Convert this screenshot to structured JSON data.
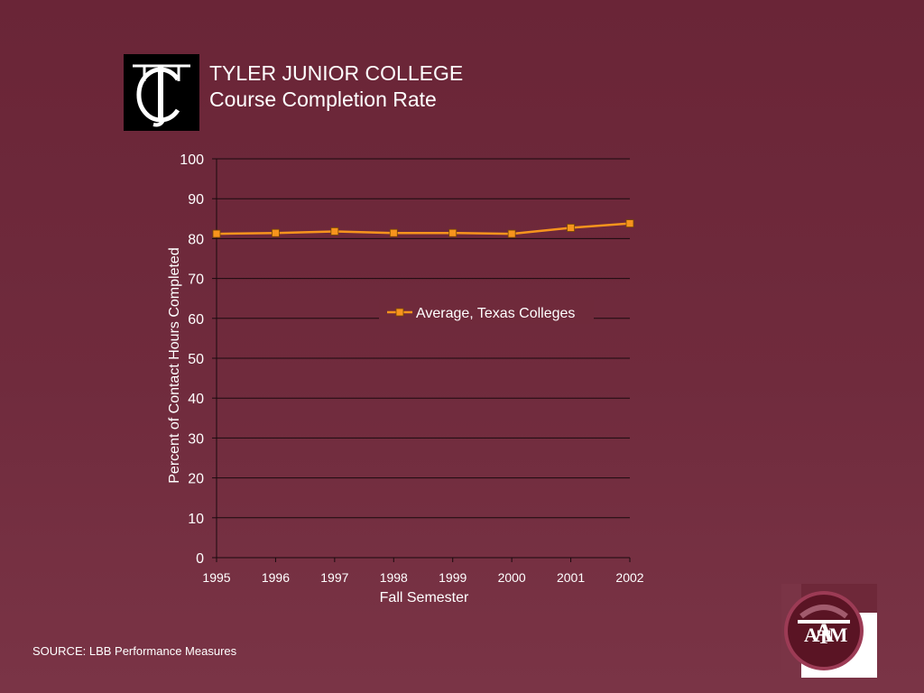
{
  "slide": {
    "title_line1": "TYLER JUNIOR COLLEGE",
    "title_line2": "Course Completion Rate",
    "source": "SOURCE:  LBB Performance Measures",
    "logo_left_text": "TJC",
    "logo_right_text": "ATM"
  },
  "colors": {
    "background": "#6e2839",
    "series_line": "#f7941d",
    "gridline": "#1a0a0e",
    "text": "#ffffff"
  },
  "chart_data": {
    "type": "line",
    "title": "",
    "xlabel": "Fall Semester",
    "ylabel": "Percent of Contact Hours Completed",
    "x": [
      "1995",
      "1996",
      "1997",
      "1998",
      "1999",
      "2000",
      "2001",
      "2002"
    ],
    "ylim": [
      0,
      100
    ],
    "yticks": [
      "0",
      "10",
      "20",
      "30",
      "40",
      "50",
      "60",
      "70",
      "80",
      "90",
      "100"
    ],
    "grid": true,
    "legend_position": "center-right",
    "series": [
      {
        "name": "Average, Texas Colleges",
        "values": [
          81.2,
          81.4,
          81.8,
          81.4,
          81.4,
          81.2,
          82.7,
          83.8
        ]
      }
    ]
  }
}
